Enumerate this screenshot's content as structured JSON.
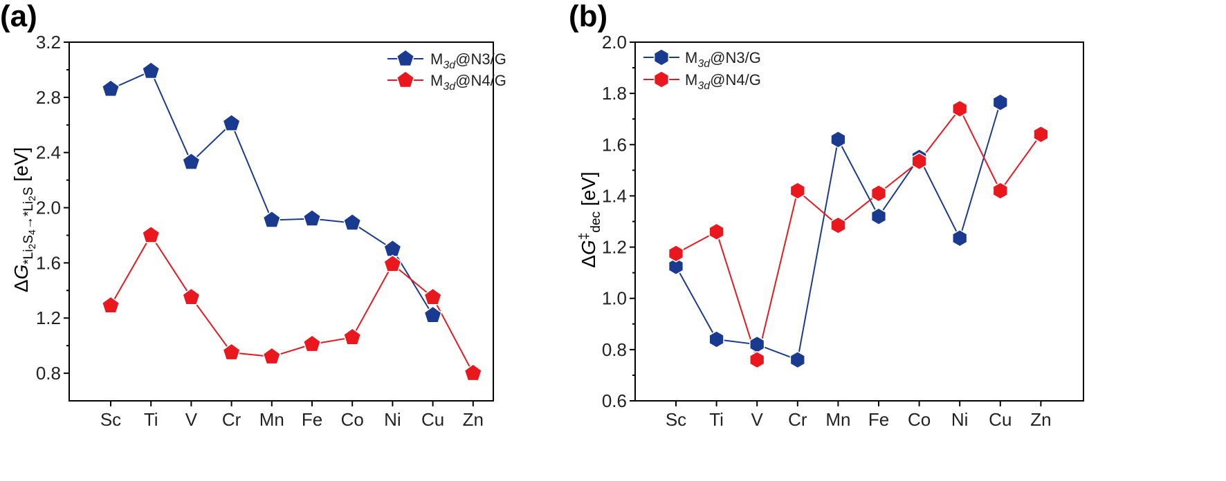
{
  "chart_data": [
    {
      "type": "line",
      "panel_label": "(a)",
      "marker": "pentagon",
      "categories": [
        "Sc",
        "Ti",
        "V",
        "Cr",
        "Mn",
        "Fe",
        "Co",
        "Ni",
        "Cu",
        "Zn"
      ],
      "ylabel": "ΔG*Li2S4→*Li2S [eV]",
      "ylabel_parts": {
        "delta": "Δ",
        "g": "G",
        "sub": "*Li",
        "sub2": "2",
        "sub3": "S",
        "sub4": "4",
        "arrow": "→*Li",
        "sub5": "2",
        "sub6": "S",
        "unit": " [eV]"
      },
      "ylim": [
        0.6,
        3.2
      ],
      "yticks": [
        "0.8",
        "1.2",
        "1.6",
        "2.0",
        "2.4",
        "2.8",
        "3.2"
      ],
      "series": [
        {
          "name": "M3d@N3/G",
          "legend": {
            "m": "M",
            "sub": "3d",
            "rest": "@N3/G"
          },
          "color": "#1a3a8f",
          "values": [
            2.86,
            2.99,
            2.33,
            2.61,
            1.91,
            1.92,
            1.89,
            1.7,
            1.22,
            null
          ]
        },
        {
          "name": "M3d@N4/G",
          "legend": {
            "m": "M",
            "sub": "3d",
            "rest": "@N4/G"
          },
          "color": "#e8181e",
          "values": [
            1.29,
            1.8,
            1.35,
            0.95,
            0.92,
            1.01,
            1.06,
            1.59,
            1.35,
            0.8
          ]
        }
      ]
    },
    {
      "type": "line",
      "panel_label": "(b)",
      "marker": "hexagon",
      "categories": [
        "Sc",
        "Ti",
        "V",
        "Cr",
        "Mn",
        "Fe",
        "Co",
        "Ni",
        "Cu",
        "Zn"
      ],
      "ylabel": "ΔG‡dec [eV]",
      "ylabel_parts": {
        "delta": "Δ",
        "g": "G",
        "sup": "‡",
        "sub": "dec",
        "unit": " [eV]"
      },
      "ylim": [
        0.6,
        2.0
      ],
      "yticks": [
        "0.6",
        "0.8",
        "1.0",
        "1.2",
        "1.4",
        "1.6",
        "1.8",
        "2.0"
      ],
      "series": [
        {
          "name": "M3d@N3/G",
          "legend": {
            "m": "M",
            "sub": "3d",
            "rest": "@N3/G"
          },
          "color": "#1a3a8f",
          "values": [
            1.125,
            0.84,
            0.82,
            0.76,
            1.62,
            1.32,
            1.55,
            1.235,
            1.765,
            null
          ]
        },
        {
          "name": "M3d@N4/G",
          "legend": {
            "m": "M",
            "sub": "3d",
            "rest": "@N4/G"
          },
          "color": "#e8181e",
          "values": [
            1.175,
            1.26,
            0.76,
            1.42,
            1.285,
            1.41,
            1.535,
            1.74,
            1.42,
            1.64
          ]
        }
      ]
    }
  ]
}
